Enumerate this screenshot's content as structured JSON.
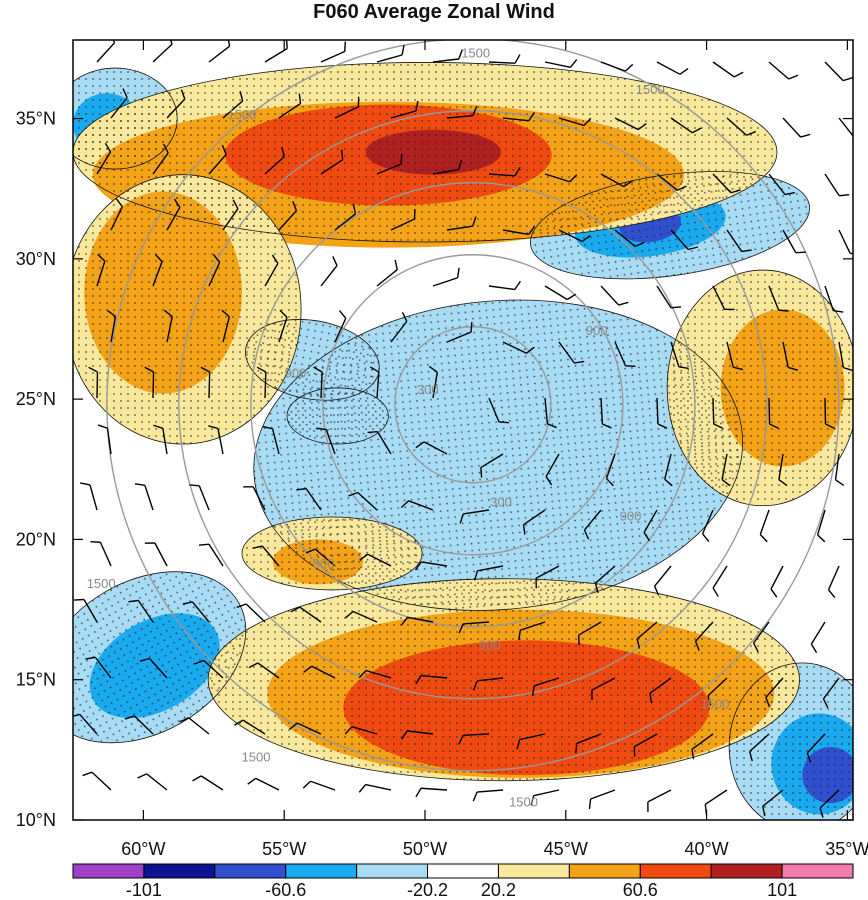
{
  "title": "F060 Average Zonal Wind",
  "chart_data": {
    "type": "heatmap",
    "title": "F060 Average Zonal Wind",
    "xlim": [
      -62.5,
      -34.8
    ],
    "ylim": [
      10,
      37.8
    ],
    "x_ticks": [
      {
        "value": -60,
        "label": "60°W"
      },
      {
        "value": -55,
        "label": "55°W"
      },
      {
        "value": -50,
        "label": "50°W"
      },
      {
        "value": -45,
        "label": "45°W"
      },
      {
        "value": -40,
        "label": "40°W"
      },
      {
        "value": -35,
        "label": "35°W"
      }
    ],
    "y_ticks": [
      {
        "value": 35,
        "label": "35°N"
      },
      {
        "value": 30,
        "label": "30°N"
      },
      {
        "value": 25,
        "label": "25°N"
      },
      {
        "value": 20,
        "label": "20°N"
      },
      {
        "value": 15,
        "label": "15°N"
      },
      {
        "value": 10,
        "label": "10°N"
      }
    ],
    "colorbar": {
      "colors": [
        "#a040c8",
        "#0d1290",
        "#3050d0",
        "#1aaaf0",
        "#a8dcf5",
        "#ffffff",
        "#fae89c",
        "#f5a316",
        "#f04a10",
        "#b02020",
        "#f57ab0"
      ],
      "labels": [
        {
          "boundary": 1,
          "text": "-101"
        },
        {
          "boundary": 3,
          "text": "-60.6"
        },
        {
          "boundary": 5,
          "text": "-20.2"
        },
        {
          "boundary": 6,
          "text": "20.2"
        },
        {
          "boundary": 8,
          "text": "60.6"
        },
        {
          "boundary": 10,
          "text": "101"
        }
      ]
    },
    "gray_contours": {
      "center": [
        -48.3,
        24.8
      ],
      "levels": [
        300,
        600,
        900,
        1200,
        1500
      ],
      "labels": [
        {
          "text": "300",
          "lon": -49.9,
          "lat": 25.3
        },
        {
          "text": "300",
          "lon": -47.3,
          "lat": 21.3
        },
        {
          "text": "900",
          "lon": -54.6,
          "lat": 25.9
        },
        {
          "text": "900",
          "lon": -43.9,
          "lat": 27.4
        },
        {
          "text": "900",
          "lon": -42.7,
          "lat": 20.8
        },
        {
          "text": "900",
          "lon": -53.6,
          "lat": 19.1
        },
        {
          "text": "900",
          "lon": -47.7,
          "lat": 16.2
        },
        {
          "text": "1500",
          "lon": -48.2,
          "lat": 37.3
        },
        {
          "text": "1500",
          "lon": -56.5,
          "lat": 35.1
        },
        {
          "text": "1500",
          "lon": -42.0,
          "lat": 36.0
        },
        {
          "text": "1500",
          "lon": -61.5,
          "lat": 18.4
        },
        {
          "text": "1500",
          "lon": -56.0,
          "lat": 12.2
        },
        {
          "text": "1500",
          "lon": -46.5,
          "lat": 10.6
        },
        {
          "text": "1500",
          "lon": -39.7,
          "lat": 14.1
        }
      ]
    },
    "wind_regions": [
      {
        "level": 2,
        "cx": -45.8,
        "cy": 23.6,
        "rx": 3.9,
        "ry": 4.2,
        "rot": -25
      },
      {
        "level": 3,
        "cx": -46.4,
        "cy": 23.3,
        "rx": 6.4,
        "ry": 5.1,
        "rot": -10
      },
      {
        "level": 4,
        "cx": -47.4,
        "cy": 23.0,
        "rx": 8.7,
        "ry": 5.5,
        "rot": -5
      },
      {
        "level": 4,
        "cx": -54.0,
        "cy": 26.4,
        "rx": 2.4,
        "ry": 1.4,
        "rot": 10
      },
      {
        "level": 4,
        "cx": -53.1,
        "cy": 24.4,
        "rx": 1.8,
        "ry": 1.0,
        "rot": 0
      },
      {
        "level": 4,
        "cx": -41.3,
        "cy": 31.2,
        "rx": 5.0,
        "ry": 1.8,
        "rot": -8
      },
      {
        "level": 3,
        "cx": -42.0,
        "cy": 31.2,
        "rx": 2.7,
        "ry": 1.1,
        "rot": -8
      },
      {
        "level": 2,
        "cx": -42.0,
        "cy": 31.2,
        "rx": 1.1,
        "ry": 0.6,
        "rot": -8
      },
      {
        "level": 4,
        "cx": -60.0,
        "cy": 15.8,
        "rx": 3.9,
        "ry": 2.7,
        "rot": -30
      },
      {
        "level": 3,
        "cx": -59.6,
        "cy": 15.5,
        "rx": 2.5,
        "ry": 1.6,
        "rot": -30
      },
      {
        "level": 4,
        "cx": -36.6,
        "cy": 12.6,
        "rx": 2.6,
        "ry": 3.0,
        "rot": 0
      },
      {
        "level": 3,
        "cx": -36.0,
        "cy": 12.0,
        "rx": 1.7,
        "ry": 1.8,
        "rot": 0
      },
      {
        "level": 2,
        "cx": -35.6,
        "cy": 11.6,
        "rx": 1.0,
        "ry": 1.0,
        "rot": 0
      },
      {
        "level": 4,
        "cx": -61.0,
        "cy": 35.0,
        "rx": 2.2,
        "ry": 1.8,
        "rot": 0
      },
      {
        "level": 3,
        "cx": -61.3,
        "cy": 34.8,
        "rx": 1.2,
        "ry": 1.1,
        "rot": 0
      },
      {
        "level": 6,
        "cx": -50.0,
        "cy": 33.8,
        "rx": 12.5,
        "ry": 3.2,
        "rot": 0
      },
      {
        "level": 7,
        "cx": -51.3,
        "cy": 33.0,
        "rx": 10.5,
        "ry": 2.6,
        "rot": 0
      },
      {
        "level": 8,
        "cx": -51.3,
        "cy": 33.7,
        "rx": 5.8,
        "ry": 1.8,
        "rot": 0
      },
      {
        "level": 9,
        "cx": -49.7,
        "cy": 33.8,
        "rx": 2.4,
        "ry": 0.8,
        "rot": 0
      },
      {
        "level": 6,
        "cx": -47.2,
        "cy": 15.0,
        "rx": 10.5,
        "ry": 3.6,
        "rot": 0
      },
      {
        "level": 7,
        "cx": -46.6,
        "cy": 14.5,
        "rx": 9.0,
        "ry": 3.0,
        "rot": 0
      },
      {
        "level": 8,
        "cx": -46.4,
        "cy": 14.0,
        "rx": 6.5,
        "ry": 2.4,
        "rot": 0
      },
      {
        "level": 6,
        "cx": -38.0,
        "cy": 25.4,
        "rx": 3.4,
        "ry": 4.2,
        "rot": 0
      },
      {
        "level": 7,
        "cx": -37.3,
        "cy": 25.4,
        "rx": 2.2,
        "ry": 2.8,
        "rot": 0
      },
      {
        "level": 6,
        "cx": -58.6,
        "cy": 28.2,
        "rx": 4.2,
        "ry": 4.8,
        "rot": 0
      },
      {
        "level": 7,
        "cx": -59.3,
        "cy": 28.8,
        "rx": 2.8,
        "ry": 3.6,
        "rot": 0
      },
      {
        "level": 6,
        "cx": -53.3,
        "cy": 19.5,
        "rx": 3.2,
        "ry": 1.3,
        "rot": 0
      },
      {
        "level": 7,
        "cx": -53.8,
        "cy": 19.2,
        "rx": 1.6,
        "ry": 0.8,
        "rot": 0
      }
    ]
  },
  "contour_label_color": "#888888"
}
